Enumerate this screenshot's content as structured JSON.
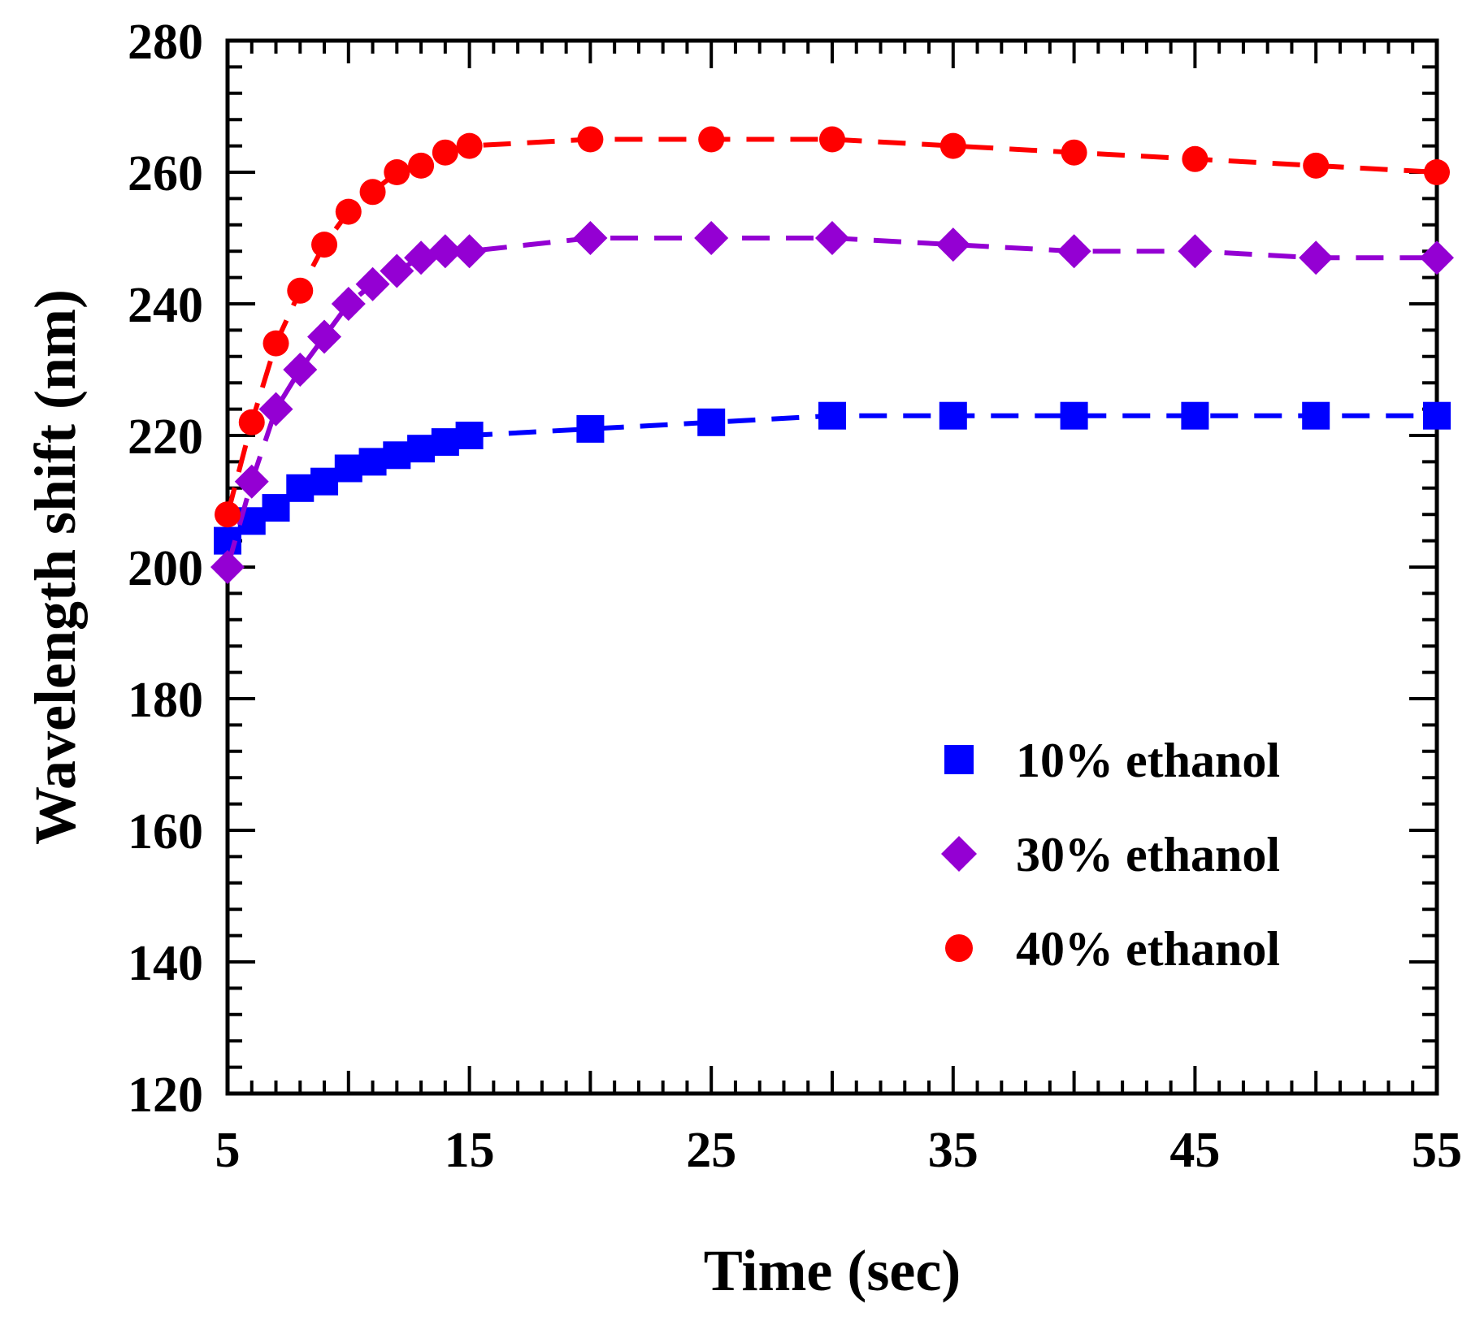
{
  "chart_data": {
    "type": "line",
    "title": "",
    "xlabel": "Time (sec)",
    "ylabel": "Wavelength shift (nm)",
    "xlim": [
      5,
      55
    ],
    "ylim": [
      120,
      280
    ],
    "xticks": [
      5,
      15,
      25,
      35,
      45,
      55
    ],
    "yticks": [
      120,
      140,
      160,
      180,
      200,
      220,
      240,
      260,
      280
    ],
    "grid": false,
    "legend_position": "bottom-right",
    "series": [
      {
        "name": "10% ethanol",
        "color": "#0000ff",
        "marker": "square",
        "line": "dashed",
        "x": [
          5,
          6,
          7,
          8,
          9,
          10,
          11,
          12,
          13,
          14,
          15,
          20,
          25,
          30,
          35,
          40,
          45,
          50,
          55
        ],
        "y": [
          204,
          207,
          209,
          212,
          213,
          215,
          216,
          217,
          218,
          219,
          220,
          221,
          222,
          223,
          223,
          223,
          223,
          223,
          223
        ]
      },
      {
        "name": "30% ethanol",
        "color": "#9400d3",
        "marker": "diamond",
        "line": "dashed",
        "x": [
          5,
          6,
          7,
          8,
          9,
          10,
          11,
          12,
          13,
          14,
          15,
          20,
          25,
          30,
          35,
          40,
          45,
          50,
          55
        ],
        "y": [
          200,
          213,
          224,
          230,
          235,
          240,
          243,
          245,
          247,
          248,
          248,
          250,
          250,
          250,
          249,
          248,
          248,
          247,
          247
        ]
      },
      {
        "name": "40% ethanol",
        "color": "#ff0000",
        "marker": "circle",
        "line": "dashed",
        "x": [
          5,
          6,
          7,
          8,
          9,
          10,
          11,
          12,
          13,
          14,
          15,
          20,
          25,
          30,
          35,
          40,
          45,
          50,
          55
        ],
        "y": [
          208,
          222,
          234,
          242,
          249,
          254,
          257,
          260,
          261,
          263,
          264,
          265,
          265,
          265,
          264,
          263,
          262,
          261,
          260
        ]
      }
    ]
  }
}
